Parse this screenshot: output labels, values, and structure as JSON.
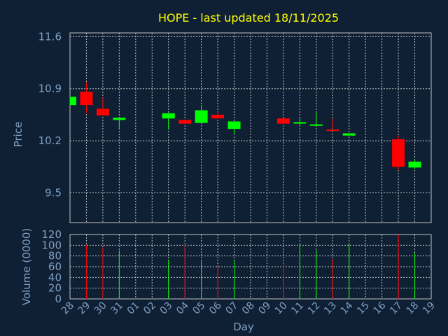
{
  "chart_data": {
    "type": "candlestick",
    "title": "HOPE - last updated 18/11/2025",
    "xlabel": "Day",
    "price_panel": {
      "ylabel": "Price",
      "yticks": [
        "9.5",
        "10.2",
        "10.9",
        "11.6"
      ],
      "ylim": [
        9.1,
        11.65
      ]
    },
    "volume_panel": {
      "ylabel": "Volume (0000)",
      "yticks": [
        "0",
        "20",
        "40",
        "60",
        "80",
        "100",
        "120"
      ],
      "ylim": [
        0,
        120
      ]
    },
    "x_ticks": [
      "28",
      "29",
      "30",
      "31",
      "01",
      "02",
      "03",
      "04",
      "05",
      "06",
      "07",
      "08",
      "09",
      "10",
      "11",
      "12",
      "13",
      "14",
      "15",
      "16",
      "17",
      "18",
      "19"
    ],
    "colors": {
      "up": "#00ff00",
      "down": "#ff0000",
      "grid": "#c0c0c0",
      "background": "#0f2035",
      "title": "#ffff00",
      "text": "#7f9fbf"
    },
    "series": [
      {
        "x": "28",
        "open": 10.68,
        "close": 10.79,
        "high": 10.79,
        "low": 10.68,
        "volume": 0
      },
      {
        "x": "29",
        "open": 10.86,
        "close": 10.68,
        "high": 10.99,
        "low": 10.57,
        "volume": 100
      },
      {
        "x": "30",
        "open": 10.63,
        "close": 10.54,
        "high": 10.78,
        "low": 10.54,
        "volume": 96
      },
      {
        "x": "31",
        "open": 10.48,
        "close": 10.51,
        "high": 10.51,
        "low": 10.36,
        "volume": 90
      },
      {
        "x": "03",
        "open": 10.5,
        "close": 10.57,
        "high": 10.57,
        "low": 10.35,
        "volume": 73
      },
      {
        "x": "04",
        "open": 10.48,
        "close": 10.43,
        "high": 10.48,
        "low": 10.43,
        "volume": 100
      },
      {
        "x": "05",
        "open": 10.44,
        "close": 10.61,
        "high": 10.68,
        "low": 10.43,
        "volume": 70
      },
      {
        "x": "06",
        "open": 10.55,
        "close": 10.5,
        "high": 10.59,
        "low": 10.5,
        "volume": 61
      },
      {
        "x": "07",
        "open": 10.36,
        "close": 10.46,
        "high": 10.46,
        "low": 10.29,
        "volume": 71
      },
      {
        "x": "10",
        "open": 10.5,
        "close": 10.43,
        "high": 10.5,
        "low": 10.43,
        "volume": 66
      },
      {
        "x": "11",
        "open": 10.44,
        "close": 10.45,
        "high": 10.5,
        "low": 10.39,
        "volume": 104
      },
      {
        "x": "12",
        "open": 10.41,
        "close": 10.42,
        "high": 10.58,
        "low": 10.41,
        "volume": 90
      },
      {
        "x": "13",
        "open": 10.35,
        "close": 10.34,
        "high": 10.5,
        "low": 10.34,
        "volume": 74
      },
      {
        "x": "14",
        "open": 10.27,
        "close": 10.3,
        "high": 10.3,
        "low": 10.27,
        "volume": 104
      },
      {
        "x": "17",
        "open": 10.22,
        "close": 9.85,
        "high": 10.27,
        "low": 9.81,
        "volume": 120
      },
      {
        "x": "18",
        "open": 9.84,
        "close": 9.92,
        "high": 9.95,
        "low": 9.82,
        "volume": 86
      }
    ]
  }
}
